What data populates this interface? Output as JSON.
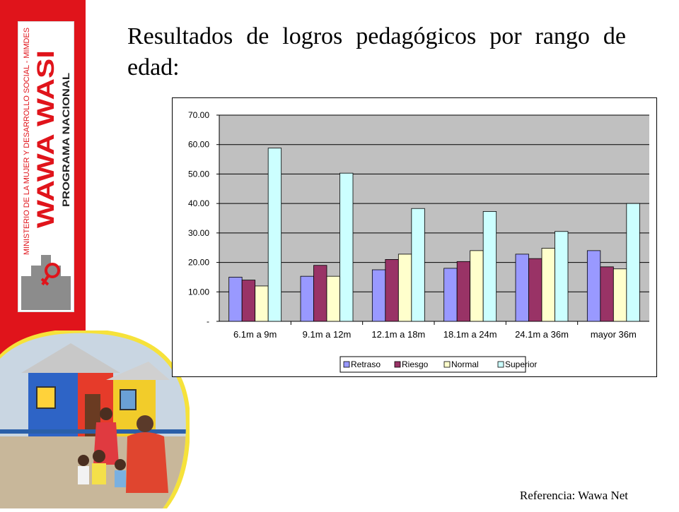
{
  "brand": {
    "ministry": "MINISTERIO DE LA MUJER Y DESARROLLO SOCIAL - MIMDES",
    "program_name": "WAWA WASI",
    "program_subtitle": "PROGRAMA NACIONAL",
    "colors": {
      "red": "#e0141b",
      "gray": "#8c8c8c",
      "yellow": "#f6e23a"
    }
  },
  "title": "Resultados de logros pedagógicos por rango de edad:",
  "reference": "Referencia: Wawa Net",
  "chart_data": {
    "type": "bar",
    "categories": [
      "6.1m a 9m",
      "9.1m a 12m",
      "12.1m a 18m",
      "18.1m a 24m",
      "24.1m a 36m",
      "mayor 36m"
    ],
    "series": [
      {
        "name": "Retraso",
        "color": "#9999ff",
        "values": [
          15.0,
          15.3,
          17.5,
          18.0,
          22.8,
          24.0
        ]
      },
      {
        "name": "Riesgo",
        "color": "#993366",
        "values": [
          14.0,
          19.0,
          21.0,
          20.3,
          21.3,
          18.5
        ]
      },
      {
        "name": "Normal",
        "color": "#ffffcc",
        "values": [
          12.0,
          15.3,
          22.8,
          24.0,
          24.8,
          17.8
        ]
      },
      {
        "name": "Superior",
        "color": "#ccffff",
        "values": [
          58.8,
          50.3,
          38.3,
          37.3,
          30.5,
          40.0
        ]
      }
    ],
    "y_ticks": [
      "-",
      "10.00",
      "20.00",
      "30.00",
      "40.00",
      "50.00",
      "60.00",
      "70.00"
    ],
    "ylim": [
      0,
      70
    ],
    "plot_background": "#c0c0c0",
    "grid": true,
    "legend_position": "bottom"
  }
}
